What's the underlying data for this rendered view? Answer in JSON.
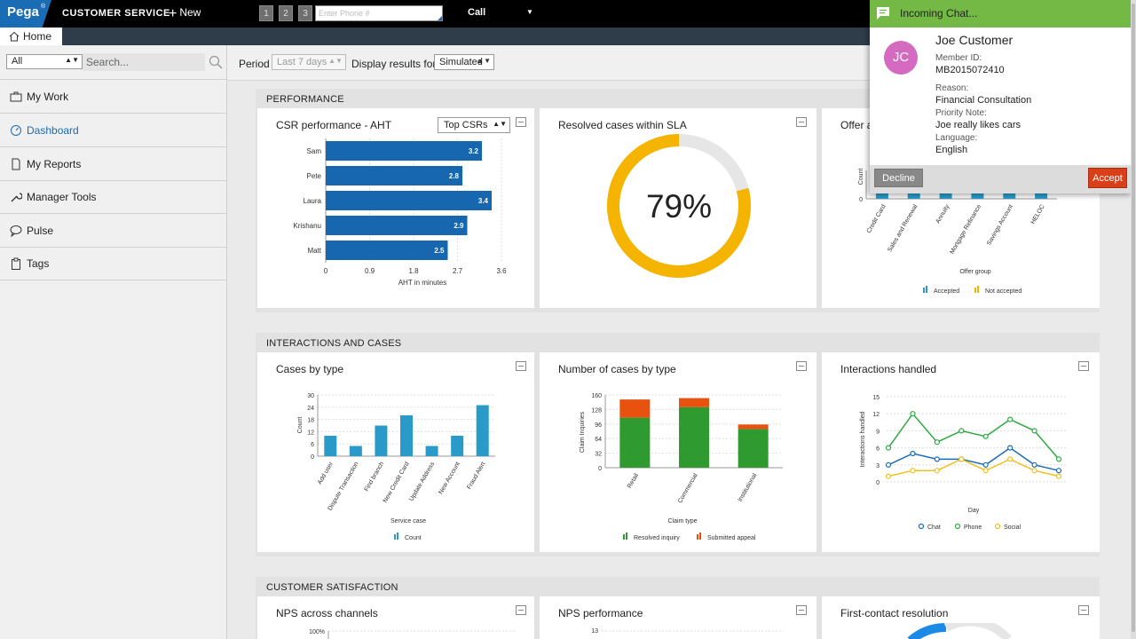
{
  "header": {
    "logo": "Pega",
    "app_name": "CUSTOMER SERVICE",
    "new_label": "New",
    "interaction_tabs": [
      "1",
      "2",
      "3"
    ],
    "phone_placeholder": "Enter Phone #",
    "channel": "Call"
  },
  "tabs": {
    "home": "Home"
  },
  "sidebar": {
    "filter_value": "All",
    "search_placeholder": "Search...",
    "items": [
      {
        "label": "My Work",
        "icon": "briefcase-icon"
      },
      {
        "label": "Dashboard",
        "icon": "dashboard-icon"
      },
      {
        "label": "My Reports",
        "icon": "document-icon"
      },
      {
        "label": "Manager Tools",
        "icon": "wrench-icon"
      },
      {
        "label": "Pulse",
        "icon": "chat-bubble-icon"
      },
      {
        "label": "Tags",
        "icon": "clipboard-icon"
      }
    ]
  },
  "toolbar": {
    "period_label": "Period",
    "period_value": "Last 7 days",
    "display_label": "Display results for",
    "display_value": "Simulated"
  },
  "sections": {
    "performance": "PERFORMANCE",
    "interactions": "INTERACTIONS AND CASES",
    "satisfaction": "CUSTOMER SATISFACTION"
  },
  "cards": {
    "csr_aht": {
      "title": "CSR performance - AHT",
      "filter": "Top CSRs"
    },
    "sla": {
      "title": "Resolved cases within SLA"
    },
    "offer": {
      "title": "Offer a"
    },
    "cases_by_type": {
      "title": "Cases by type"
    },
    "num_cases_by_type": {
      "title": "Number of cases by type"
    },
    "interactions": {
      "title": "Interactions handled"
    },
    "nps_channels": {
      "title": "NPS across channels"
    },
    "nps_perf": {
      "title": "NPS performance"
    },
    "fcr": {
      "title": "First-contact resolution"
    }
  },
  "chart_data": [
    {
      "id": "csr_aht",
      "type": "bar",
      "orientation": "horizontal",
      "title": "CSR performance - AHT",
      "categories": [
        "Sam",
        "Pete",
        "Laura",
        "Krishanu",
        "Matt"
      ],
      "values": [
        3.2,
        2.8,
        3.4,
        2.9,
        2.5
      ],
      "value_labels": [
        "3.2",
        "2.8",
        "3.4",
        "2.9",
        "2.5"
      ],
      "xlabel": "AHT in minutes",
      "xticks": [
        "0",
        "0.9",
        "1.8",
        "2.7",
        "3.6"
      ],
      "xlim": [
        0,
        3.6
      ],
      "color": "#1667b0"
    },
    {
      "id": "sla",
      "type": "pie",
      "title": "Resolved cases within SLA",
      "value": 79,
      "label": "79%",
      "color": "#f4b400",
      "track_color": "#e6e6e6"
    },
    {
      "id": "offer",
      "type": "bar",
      "title": "Offer a",
      "categories": [
        "Credit Card",
        "Sales and Renewal",
        "Annuity",
        "Mortgage Refinance",
        "Savings Account",
        "HELOC"
      ],
      "series": [
        {
          "name": "Accepted"
        },
        {
          "name": "Not accepted"
        }
      ],
      "ylabel": "Count",
      "xlabel": "Offer group",
      "yticks": [
        "0"
      ],
      "legend": [
        "Accepted",
        "Not accepted"
      ],
      "colors": [
        "#2a9bc9",
        "#f4b400"
      ]
    },
    {
      "id": "cases_by_type",
      "type": "bar",
      "title": "Cases by type",
      "categories": [
        "Add user",
        "Dispute Transaction",
        "Find branch",
        "New Credit Card",
        "Update Address",
        "New Account",
        "Fraud Alert"
      ],
      "values": [
        10,
        5,
        15,
        20,
        5,
        10,
        25
      ],
      "ylabel": "Count",
      "xlabel": "Service case",
      "yticks": [
        "0",
        "6",
        "12",
        "18",
        "24",
        "30"
      ],
      "ylim": [
        0,
        30
      ],
      "legend": [
        "Count"
      ],
      "color": "#2a9bc9"
    },
    {
      "id": "num_cases_by_type",
      "type": "bar",
      "stacked": true,
      "title": "Number of cases by type",
      "categories": [
        "Retail",
        "Commercial",
        "Institutional"
      ],
      "series": [
        {
          "name": "Resolved inquiry",
          "values": [
            110,
            133,
            85
          ]
        },
        {
          "name": "Submitted appeal",
          "values": [
            40,
            20,
            10
          ]
        }
      ],
      "ylabel": "Claim Inquiries",
      "xlabel": "Claim type",
      "yticks": [
        "0",
        "32",
        "64",
        "96",
        "128",
        "160"
      ],
      "ylim": [
        0,
        160
      ],
      "legend": [
        "Resolved inquiry",
        "Submitted appeal"
      ],
      "colors": [
        "#2f9a2f",
        "#e8520e"
      ]
    },
    {
      "id": "interactions",
      "type": "line",
      "title": "Interactions handled",
      "x": [
        1,
        2,
        3,
        4,
        5,
        6,
        7,
        8
      ],
      "series": [
        {
          "name": "Chat",
          "values": [
            3,
            5,
            4,
            4,
            3,
            6,
            3,
            2
          ]
        },
        {
          "name": "Phone",
          "values": [
            6,
            12,
            7,
            9,
            8,
            11,
            9,
            4
          ]
        },
        {
          "name": "Social",
          "values": [
            1,
            2,
            2,
            4,
            2,
            4,
            2,
            1
          ]
        }
      ],
      "ylabel": "Interactions handled",
      "xlabel": "Day",
      "yticks": [
        "0",
        "3",
        "6",
        "9",
        "12",
        "15"
      ],
      "ylim": [
        0,
        15
      ],
      "legend": [
        "Chat",
        "Phone",
        "Social"
      ],
      "colors": [
        "#1a6cb5",
        "#2eaa44",
        "#f0c020"
      ]
    },
    {
      "id": "nps_channels",
      "type": "bar",
      "title": "NPS across channels",
      "yticks": [
        "100%"
      ]
    },
    {
      "id": "nps_perf",
      "type": "line",
      "title": "NPS performance",
      "yticks": [
        "13"
      ]
    }
  ],
  "chat": {
    "header": "Incoming Chat...",
    "initials": "JC",
    "name": "Joe Customer",
    "member_id_label": "Member ID:",
    "member_id": "MB2015072410",
    "reason_label": "Reason:",
    "reason": "Financial Consultation",
    "priority_label": "Priority Note:",
    "priority": "Joe really likes cars",
    "language_label": "Language:",
    "language": "English",
    "decline": "Decline",
    "accept": "Accept"
  }
}
